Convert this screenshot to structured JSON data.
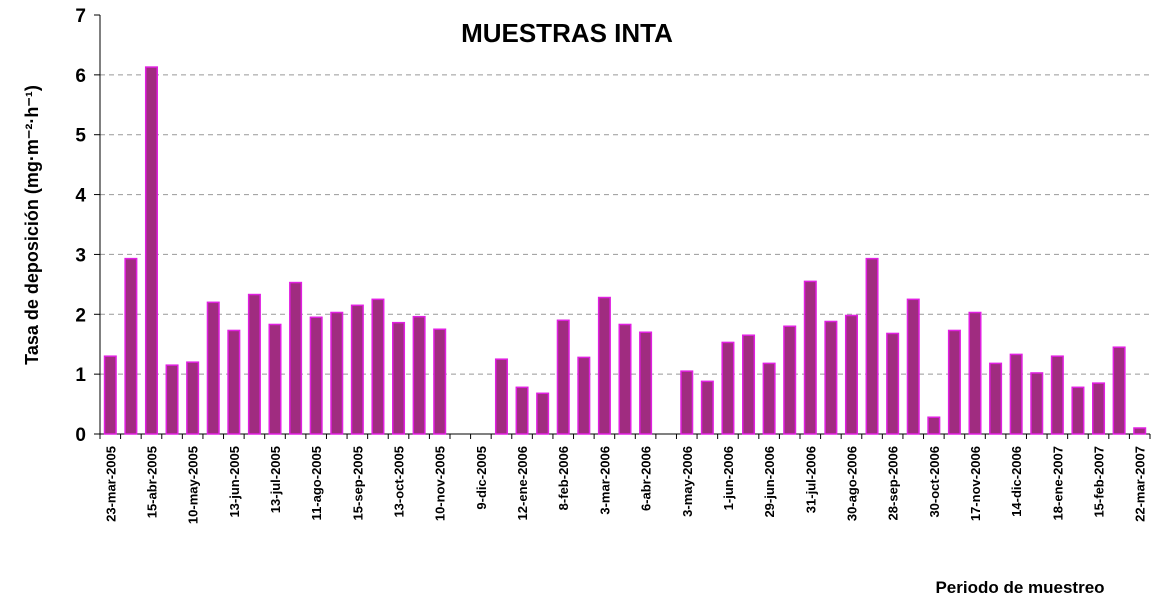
{
  "chart_data": {
    "type": "bar",
    "title": "MUESTRAS INTA",
    "y_label": "Tasa de deposición (mg·m⁻²·h⁻¹)",
    "x_label": "Periodo de muestreo",
    "categories": [
      "23-mar-2005",
      null,
      "15-abr-2005",
      null,
      "10-may-2005",
      null,
      "13-jun-2005",
      null,
      "13-jul-2005",
      null,
      "11-ago-2005",
      null,
      "15-sep-2005",
      null,
      "13-oct-2005",
      null,
      "10-nov-2005",
      null,
      "9-dic-2005",
      null,
      "12-ene-2006",
      null,
      "8-feb-2006",
      null,
      "3-mar-2006",
      null,
      "6-abr-2006",
      null,
      "3-may-2006",
      null,
      "1-jun-2006",
      null,
      "29-jun-2006",
      null,
      "31-jul-2006",
      null,
      "30-ago-2006",
      null,
      "28-sep-2006",
      null,
      "30-oct-2006",
      null,
      "17-nov-2006",
      null,
      "14-dic-2006",
      null,
      "18-ene-2007",
      null,
      "15-feb-2007",
      null,
      "22-mar-2007"
    ],
    "values": [
      1.3,
      2.93,
      6.13,
      1.15,
      1.2,
      2.2,
      1.73,
      2.33,
      1.83,
      2.53,
      1.95,
      2.03,
      2.15,
      2.25,
      1.86,
      1.96,
      1.75,
      null,
      null,
      1.25,
      0.78,
      0.68,
      1.9,
      1.28,
      2.28,
      1.83,
      1.7,
      null,
      1.05,
      0.88,
      1.53,
      1.65,
      1.18,
      1.8,
      2.55,
      1.88,
      1.98,
      2.93,
      1.68,
      2.25,
      0.28,
      1.73,
      2.03,
      1.18,
      1.33,
      1.02,
      1.3,
      0.78,
      0.85,
      1.45,
      0.1
    ],
    "color": "#a02c80",
    "edge_color": "#e020e0",
    "ylim": [
      0,
      7
    ],
    "yticks": [
      0,
      1,
      2,
      3,
      4,
      5,
      6,
      7
    ],
    "grid": true
  }
}
